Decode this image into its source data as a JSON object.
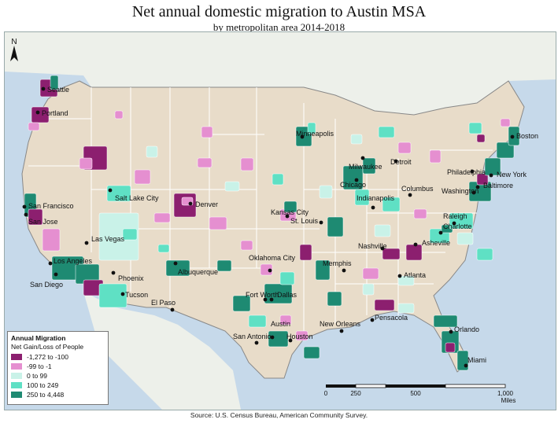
{
  "title": "Net annual domestic migration to Austin MSA",
  "subtitle": "by metropolitan area 2014-2018",
  "north_label": "N",
  "legend": {
    "title": "Annual Migration",
    "subtitle": "Net Gain/Loss of People",
    "classes": [
      {
        "label": "-1,272 to -100",
        "color": "#8c1f6f"
      },
      {
        "label": "-99 to -1",
        "color": "#e58fd0"
      },
      {
        "label": "0 to 99",
        "color": "#c9f2e8"
      },
      {
        "label": "100 to 249",
        "color": "#5fe0c4"
      },
      {
        "label": "250 to 4,448",
        "color": "#1e8a72"
      }
    ]
  },
  "scale": {
    "ticks": [
      "0",
      "250",
      "500",
      "1,000"
    ],
    "unit": "Miles"
  },
  "colors": {
    "ocean": "#c6d9ea",
    "land": "#e8dcc9",
    "state_border": "#ffffff"
  },
  "cities": [
    {
      "name": "Seattle"
    },
    {
      "name": "Portland"
    },
    {
      "name": "San Francisco"
    },
    {
      "name": "San Jose"
    },
    {
      "name": "Salt Lake City"
    },
    {
      "name": "Las Vegas"
    },
    {
      "name": "Los Angeles"
    },
    {
      "name": "San Diego"
    },
    {
      "name": "Phoenix"
    },
    {
      "name": "Tucson"
    },
    {
      "name": "El Paso"
    },
    {
      "name": "Albuquerque"
    },
    {
      "name": "Denver"
    },
    {
      "name": "Oklahoma City"
    },
    {
      "name": "Kansas City"
    },
    {
      "name": "St. Louis"
    },
    {
      "name": "Minneapolis"
    },
    {
      "name": "Milwaukee"
    },
    {
      "name": "Chicago"
    },
    {
      "name": "Detroit"
    },
    {
      "name": "Indianapolis"
    },
    {
      "name": "Columbus"
    },
    {
      "name": "Memphis"
    },
    {
      "name": "Nashville"
    },
    {
      "name": "Asheville"
    },
    {
      "name": "Raleigh"
    },
    {
      "name": "Charlotte"
    },
    {
      "name": "Atlanta"
    },
    {
      "name": "Fort Worth"
    },
    {
      "name": "Dallas"
    },
    {
      "name": "Austin"
    },
    {
      "name": "San Antonio"
    },
    {
      "name": "Houston"
    },
    {
      "name": "New Orleans"
    },
    {
      "name": "Pensacola"
    },
    {
      "name": "Orlando"
    },
    {
      "name": "Miami"
    },
    {
      "name": "Washington"
    },
    {
      "name": "Baltimore"
    },
    {
      "name": "Philadelphia"
    },
    {
      "name": "New York"
    },
    {
      "name": "Boston"
    }
  ],
  "source": "Source:  U.S. Census Bureau, American Community Survey."
}
